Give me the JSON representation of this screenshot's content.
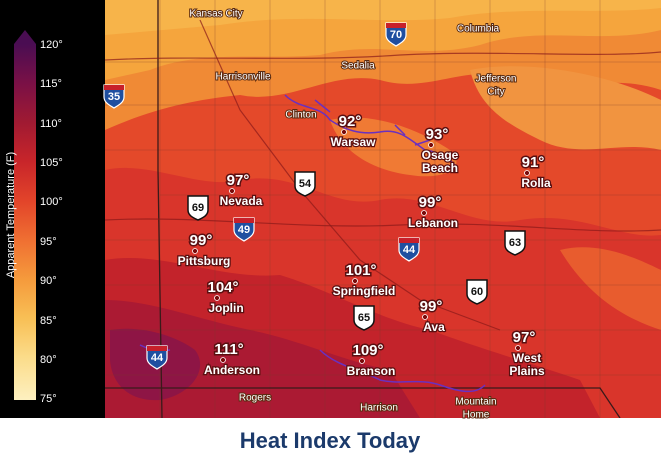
{
  "title": "Heat Index Today",
  "legend": {
    "label": "Apparent Temperature (F)",
    "ticks": [
      "120°",
      "115°",
      "110°",
      "105°",
      "100°",
      "95°",
      "90°",
      "85°",
      "80°",
      "75°"
    ]
  },
  "cities": [
    {
      "name": "Warsaw",
      "value": "92°"
    },
    {
      "name": [
        "Osage",
        "Beach"
      ],
      "value": "93°"
    },
    {
      "name": "Rolla",
      "value": "91°"
    },
    {
      "name": "Nevada",
      "value": "97°"
    },
    {
      "name": "Lebanon",
      "value": "99°"
    },
    {
      "name": "Pittsburg",
      "value": "99°"
    },
    {
      "name": "Springfield",
      "value": "101°"
    },
    {
      "name": "Joplin",
      "value": "104°"
    },
    {
      "name": "Ava",
      "value": "99°"
    },
    {
      "name": [
        "West",
        "Plains"
      ],
      "value": "97°"
    },
    {
      "name": "Anderson",
      "value": "111°"
    },
    {
      "name": "Branson",
      "value": "109°"
    }
  ],
  "places": [
    "Kansas City",
    "Columbia",
    "Sedalia",
    [
      "Jefferson",
      "City"
    ],
    "Harrisonville",
    "Clinton",
    "Rogers",
    "Harrison",
    [
      "Mountain",
      "Home"
    ]
  ],
  "highways": [
    {
      "kind": "interstate",
      "label": "70"
    },
    {
      "kind": "interstate",
      "label": "35"
    },
    {
      "kind": "us",
      "label": "54"
    },
    {
      "kind": "us",
      "label": "69"
    },
    {
      "kind": "interstate",
      "label": "49"
    },
    {
      "kind": "interstate",
      "label": "44"
    },
    {
      "kind": "us",
      "label": "63"
    },
    {
      "kind": "us",
      "label": "60"
    },
    {
      "kind": "us",
      "label": "65"
    },
    {
      "kind": "interstate",
      "label": "44"
    }
  ]
}
